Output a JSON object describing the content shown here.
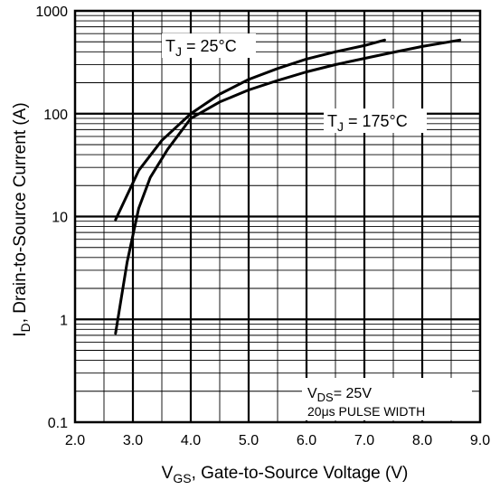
{
  "chart_data": {
    "type": "line",
    "xscale": "linear",
    "yscale": "log",
    "xlim": [
      2.0,
      9.0
    ],
    "ylim": [
      0.1,
      1000
    ],
    "grid": true,
    "x_ticks": [
      "2.0",
      "3.0",
      "4.0",
      "5.0",
      "6.0",
      "7.0",
      "8.0",
      "9.0"
    ],
    "y_ticks": [
      "0.1",
      "1",
      "10",
      "100",
      "1000"
    ],
    "xlabel": {
      "main": "V",
      "sub": "GS",
      "rest": ", Gate-to-Source Voltage (V)"
    },
    "ylabel": {
      "main": "I",
      "sub": "D",
      "rest": ",  Drain-to-Source Current (A)"
    },
    "series": [
      {
        "label": {
          "main": "T",
          "sub": "J",
          "rest": " = 25°C"
        },
        "x": [
          2.7,
          3.1,
          3.5,
          4.0,
          4.5,
          5.0,
          5.5,
          6.0,
          6.5,
          7.0,
          7.35
        ],
        "y": [
          9.3,
          28,
          55,
          100,
          155,
          215,
          275,
          340,
          400,
          460,
          520
        ]
      },
      {
        "label": {
          "main": "T",
          "sub": "J",
          "rest": " = 175°C"
        },
        "x": [
          2.7,
          2.9,
          3.1,
          3.3,
          3.6,
          4.0,
          4.5,
          5.0,
          5.5,
          6.0,
          6.5,
          7.0,
          7.5,
          8.0,
          8.65
        ],
        "y": [
          0.73,
          3.6,
          12,
          24,
          45,
          90,
          130,
          170,
          210,
          255,
          300,
          345,
          395,
          450,
          520
        ]
      }
    ],
    "annotation": {
      "line1_main": "V",
      "line1_sub": "DS",
      "line1_rest": "= 25V",
      "line2": "20μs PULSE WIDTH"
    }
  }
}
